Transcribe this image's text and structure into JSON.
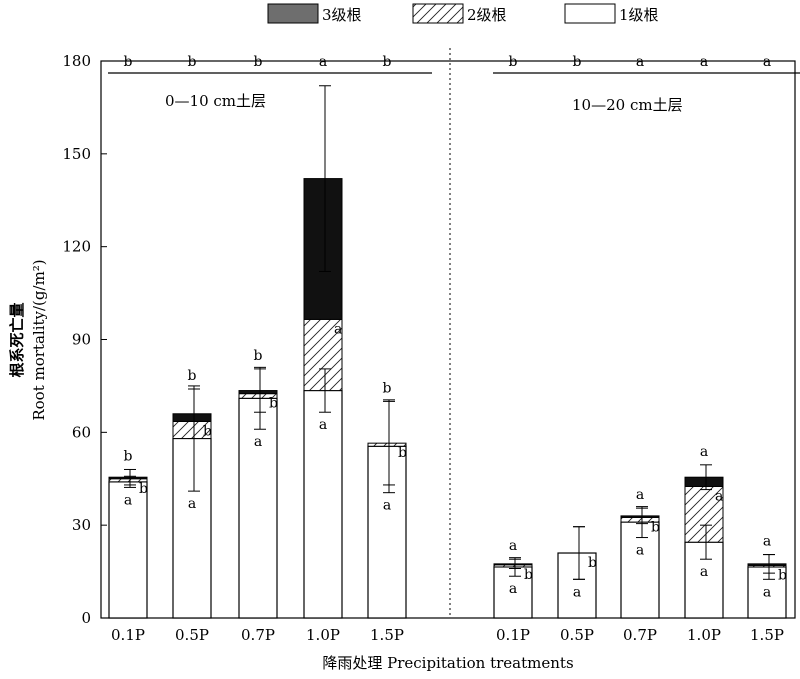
{
  "chart_data": {
    "type": "bar",
    "stacked": true,
    "legend": {
      "position": "top",
      "entries": [
        {
          "key": "r3",
          "label": "3级根",
          "fill": "#111111"
        },
        {
          "key": "r2",
          "label": "2级根",
          "fill": "hatch"
        },
        {
          "key": "r1",
          "label": "1级根",
          "fill": "#ffffff"
        }
      ]
    },
    "ylabel_cn": "根系死亡量",
    "ylabel": "Root mortality/(g/m²)",
    "xlabel": "降雨处理 Precipitation treatments",
    "ylim": [
      0,
      180
    ],
    "yticks": [
      0,
      30,
      60,
      90,
      120,
      150,
      180
    ],
    "categories": [
      "0.1P",
      "0.5P",
      "0.7P",
      "1.0P",
      "1.5P"
    ],
    "panels": [
      {
        "label": "0—10 cm土层",
        "total_letters": [
          "b",
          "b",
          "b",
          "a",
          "b"
        ],
        "bars": [
          {
            "r1": 44,
            "r2": 1,
            "r3": 0.5,
            "r1_err": 1.8,
            "total_err": 2.5,
            "letters": {
              "top": "b",
              "side": "b",
              "bottom": "a"
            }
          },
          {
            "r1": 58,
            "r2": 5.5,
            "r3": 2.5,
            "r1_err": 17,
            "total_err": 8,
            "letters": {
              "top": "b",
              "side": "b",
              "bottom": "a"
            }
          },
          {
            "r1": 71,
            "r2": 1.5,
            "r3": 1,
            "r1_err": 10,
            "total_err": 7,
            "letters": {
              "top": "b",
              "side": "b",
              "bottom": "a"
            }
          },
          {
            "r1": 73.5,
            "r2": 23,
            "r3": 45.5,
            "r1_err": 7,
            "total_err": 30,
            "letters": {
              "top": "",
              "side": "a",
              "bottom": "a"
            }
          },
          {
            "r1": 55.5,
            "r2": 1,
            "r3": 0,
            "r1_err": 15,
            "total_err": 13.5,
            "letters": {
              "top": "b",
              "side": "b",
              "bottom": "a"
            }
          }
        ]
      },
      {
        "label": "10—20 cm土层",
        "total_letters": [
          "b",
          "b",
          "a",
          "a",
          "a"
        ],
        "bars": [
          {
            "r1": 16.5,
            "r2": 0.7,
            "r3": 0.3,
            "r1_err": 3,
            "total_err": 1.5,
            "letters": {
              "top": "a",
              "side": "b",
              "bottom": "a"
            }
          },
          {
            "r1": 21,
            "r2": 0,
            "r3": 0,
            "r1_err": 8.5,
            "total_err": 8.5,
            "letters": {
              "top": "",
              "side": "b",
              "bottom": "a"
            }
          },
          {
            "r1": 31,
            "r2": 1.5,
            "r3": 0.5,
            "r1_err": 5,
            "total_err": 2.5,
            "letters": {
              "top": "a",
              "side": "b",
              "bottom": "a"
            }
          },
          {
            "r1": 24.5,
            "r2": 18,
            "r3": 3,
            "r1_err": 5.5,
            "total_err": 4,
            "letters": {
              "top": "a",
              "side": "a",
              "bottom": "a"
            }
          },
          {
            "r1": 16.5,
            "r2": 0.5,
            "r3": 0.5,
            "r1_err": 4,
            "total_err": 3,
            "letters": {
              "top": "a",
              "side": "b",
              "bottom": "a"
            }
          }
        ]
      }
    ]
  }
}
